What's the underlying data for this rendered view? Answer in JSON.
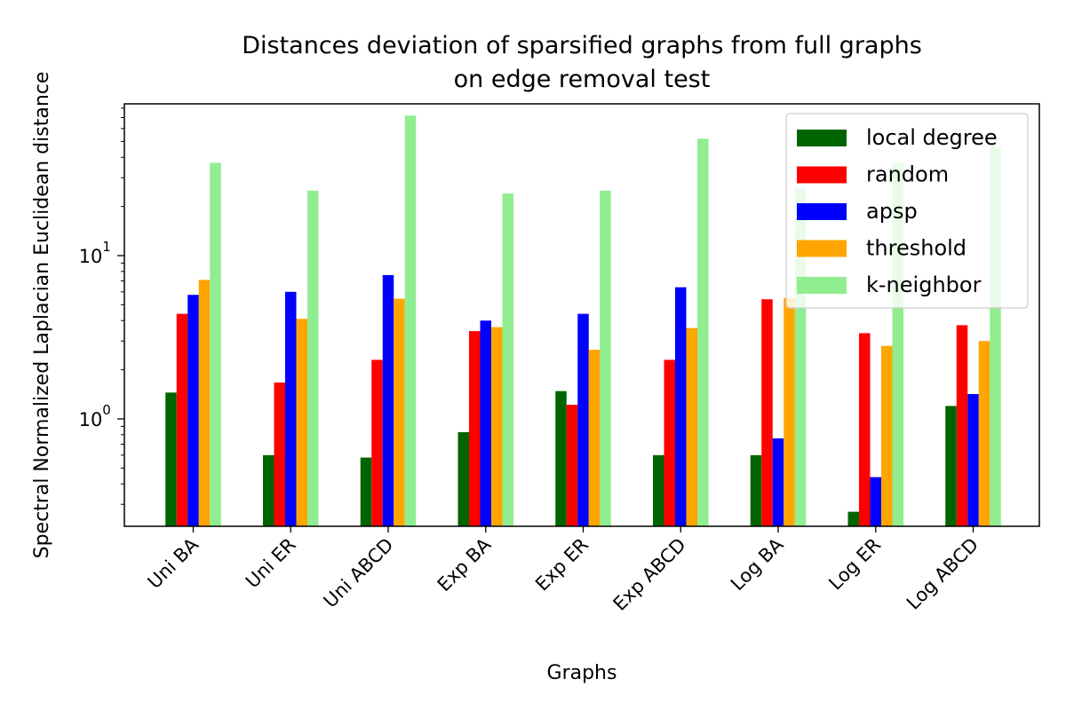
{
  "chart_data": {
    "type": "bar",
    "title_line1": "Distances deviation of sparsified graphs from full graphs",
    "title_line2": "on edge removal test",
    "xlabel": "Graphs",
    "ylabel": "Spectral Normalized Laplacian Euclidean distance",
    "yscale": "log",
    "ylim": [
      0.22,
      85
    ],
    "y_ticks": [
      {
        "value": 1,
        "base": "10",
        "exp": "0"
      },
      {
        "value": 10,
        "base": "10",
        "exp": "1"
      }
    ],
    "categories": [
      "Uni BA",
      "Uni ER",
      "Uni ABCD",
      "Exp BA",
      "Exp ER",
      "Exp ABCD",
      "Log BA",
      "Log ER",
      "Log ABCD"
    ],
    "series": [
      {
        "name": "local degree",
        "color": "#006400",
        "values": [
          1.45,
          0.6,
          0.58,
          0.83,
          1.48,
          0.6,
          0.6,
          0.27,
          1.2
        ]
      },
      {
        "name": "random",
        "color": "#ff0000",
        "values": [
          4.4,
          1.67,
          2.3,
          3.45,
          1.22,
          2.3,
          5.4,
          3.35,
          3.75
        ]
      },
      {
        "name": "apsp",
        "color": "#0000ff",
        "values": [
          5.75,
          6.0,
          7.6,
          4.0,
          4.4,
          6.4,
          0.76,
          0.44,
          1.42
        ]
      },
      {
        "name": "threshold",
        "color": "#ffa500",
        "values": [
          7.1,
          4.1,
          5.45,
          3.65,
          2.65,
          3.6,
          5.5,
          2.8,
          3.0
        ]
      },
      {
        "name": "k-neighbor",
        "color": "#90ee90",
        "values": [
          37,
          25,
          72,
          24,
          25,
          52,
          26,
          37,
          46
        ]
      }
    ],
    "legend_position": "upper right"
  }
}
